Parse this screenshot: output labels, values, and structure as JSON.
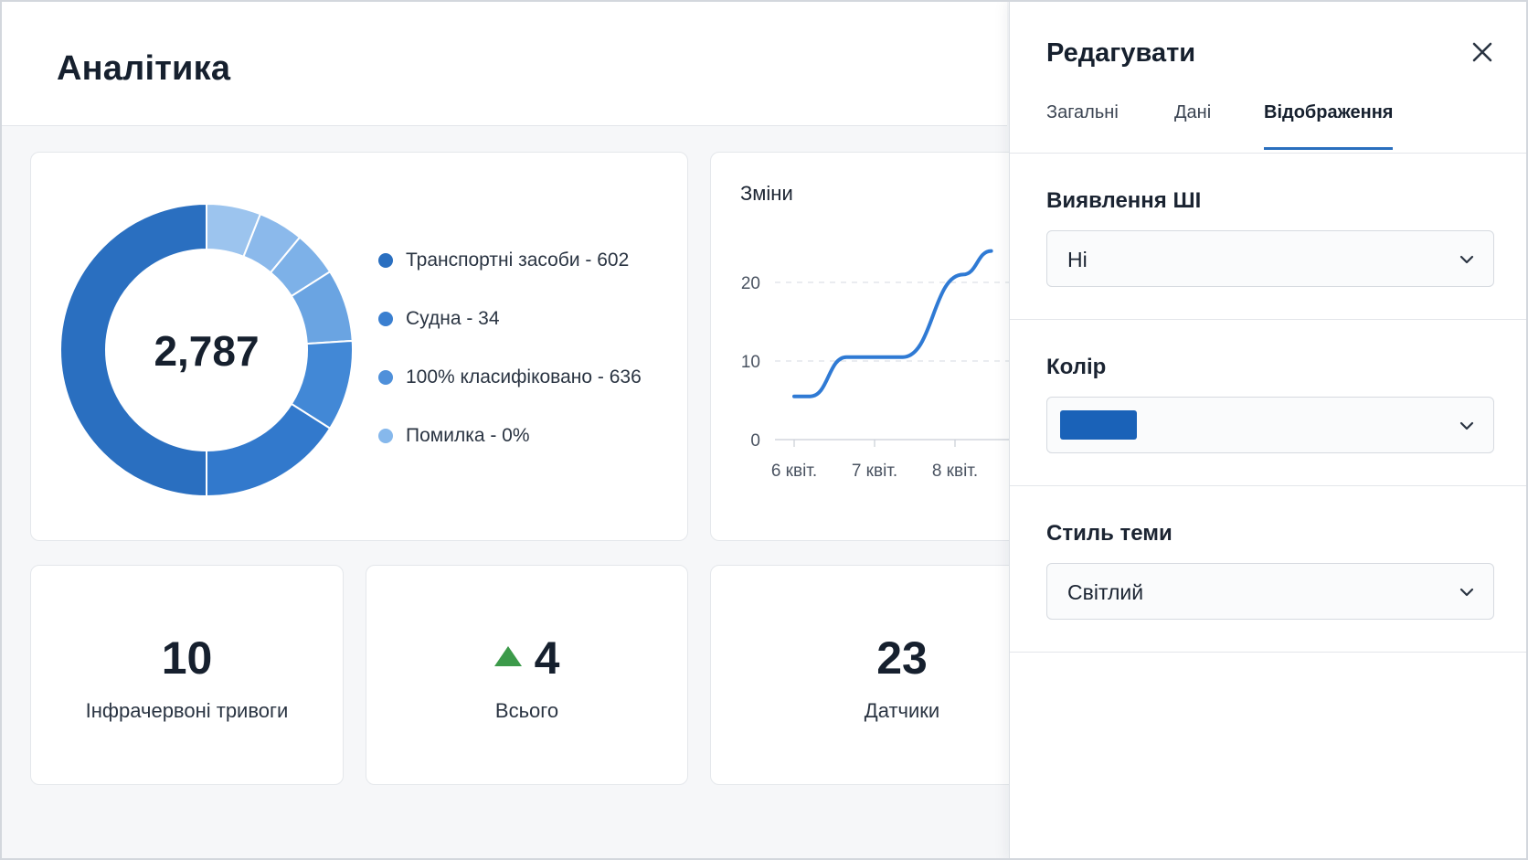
{
  "header": {
    "title": "Аналітика"
  },
  "donut": {
    "total": "2,787",
    "segments": [
      {
        "value": 50,
        "color": "#2a6fc0"
      },
      {
        "value": 16,
        "color": "#3279cc"
      },
      {
        "value": 10,
        "color": "#4288d6"
      },
      {
        "value": 8,
        "color": "#6aa4e2"
      },
      {
        "value": 5,
        "color": "#7db1e8"
      },
      {
        "value": 5,
        "color": "#8bb9eb"
      },
      {
        "value": 6,
        "color": "#9cc4ee"
      }
    ],
    "legend": [
      {
        "label": "Транспортні засоби - 602",
        "color": "#2a6fc0"
      },
      {
        "label": "Судна - 34",
        "color": "#3a7fd0"
      },
      {
        "label": "100% класифіковано - 636",
        "color": "#4f90da"
      },
      {
        "label": "Помилка - 0%",
        "color": "#86b8ec"
      }
    ]
  },
  "line_chart": {
    "title": "Зміни",
    "color": "#2f7ad4"
  },
  "chart_data": {
    "type": "line",
    "title": "Зміни",
    "x_ticks": [
      "6 квіт.",
      "7 квіт.",
      "8 квіт."
    ],
    "y_ticks": [
      "0",
      "10",
      "20"
    ],
    "ylim": [
      0,
      25
    ],
    "grid": true,
    "series": [
      {
        "values": [
          {
            "x": 0.0,
            "y": 5.5
          },
          {
            "x": 0.2,
            "y": 5.5
          },
          {
            "x": 0.65,
            "y": 10.5
          },
          {
            "x": 1.35,
            "y": 10.5
          },
          {
            "x": 2.1,
            "y": 21
          },
          {
            "x": 2.45,
            "y": 24
          }
        ]
      }
    ]
  },
  "kpis": [
    {
      "value": "10",
      "label": "Інфрачервоні тривоги",
      "trend": false
    },
    {
      "value": "4",
      "label": "Всього",
      "trend": true
    },
    {
      "value": "23",
      "label": "Датчики",
      "trend": false
    }
  ],
  "panel": {
    "title": "Редагувати",
    "tabs": [
      {
        "label": "Загальні",
        "active": false
      },
      {
        "label": "Дані",
        "active": false
      },
      {
        "label": "Відображення",
        "active": true
      }
    ],
    "ai_detection": {
      "label": "Виявлення ШІ",
      "value": "Ні"
    },
    "color": {
      "label": "Колір",
      "value": "#1a62b8"
    },
    "theme": {
      "label": "Стиль теми",
      "value": "Світлий"
    }
  }
}
